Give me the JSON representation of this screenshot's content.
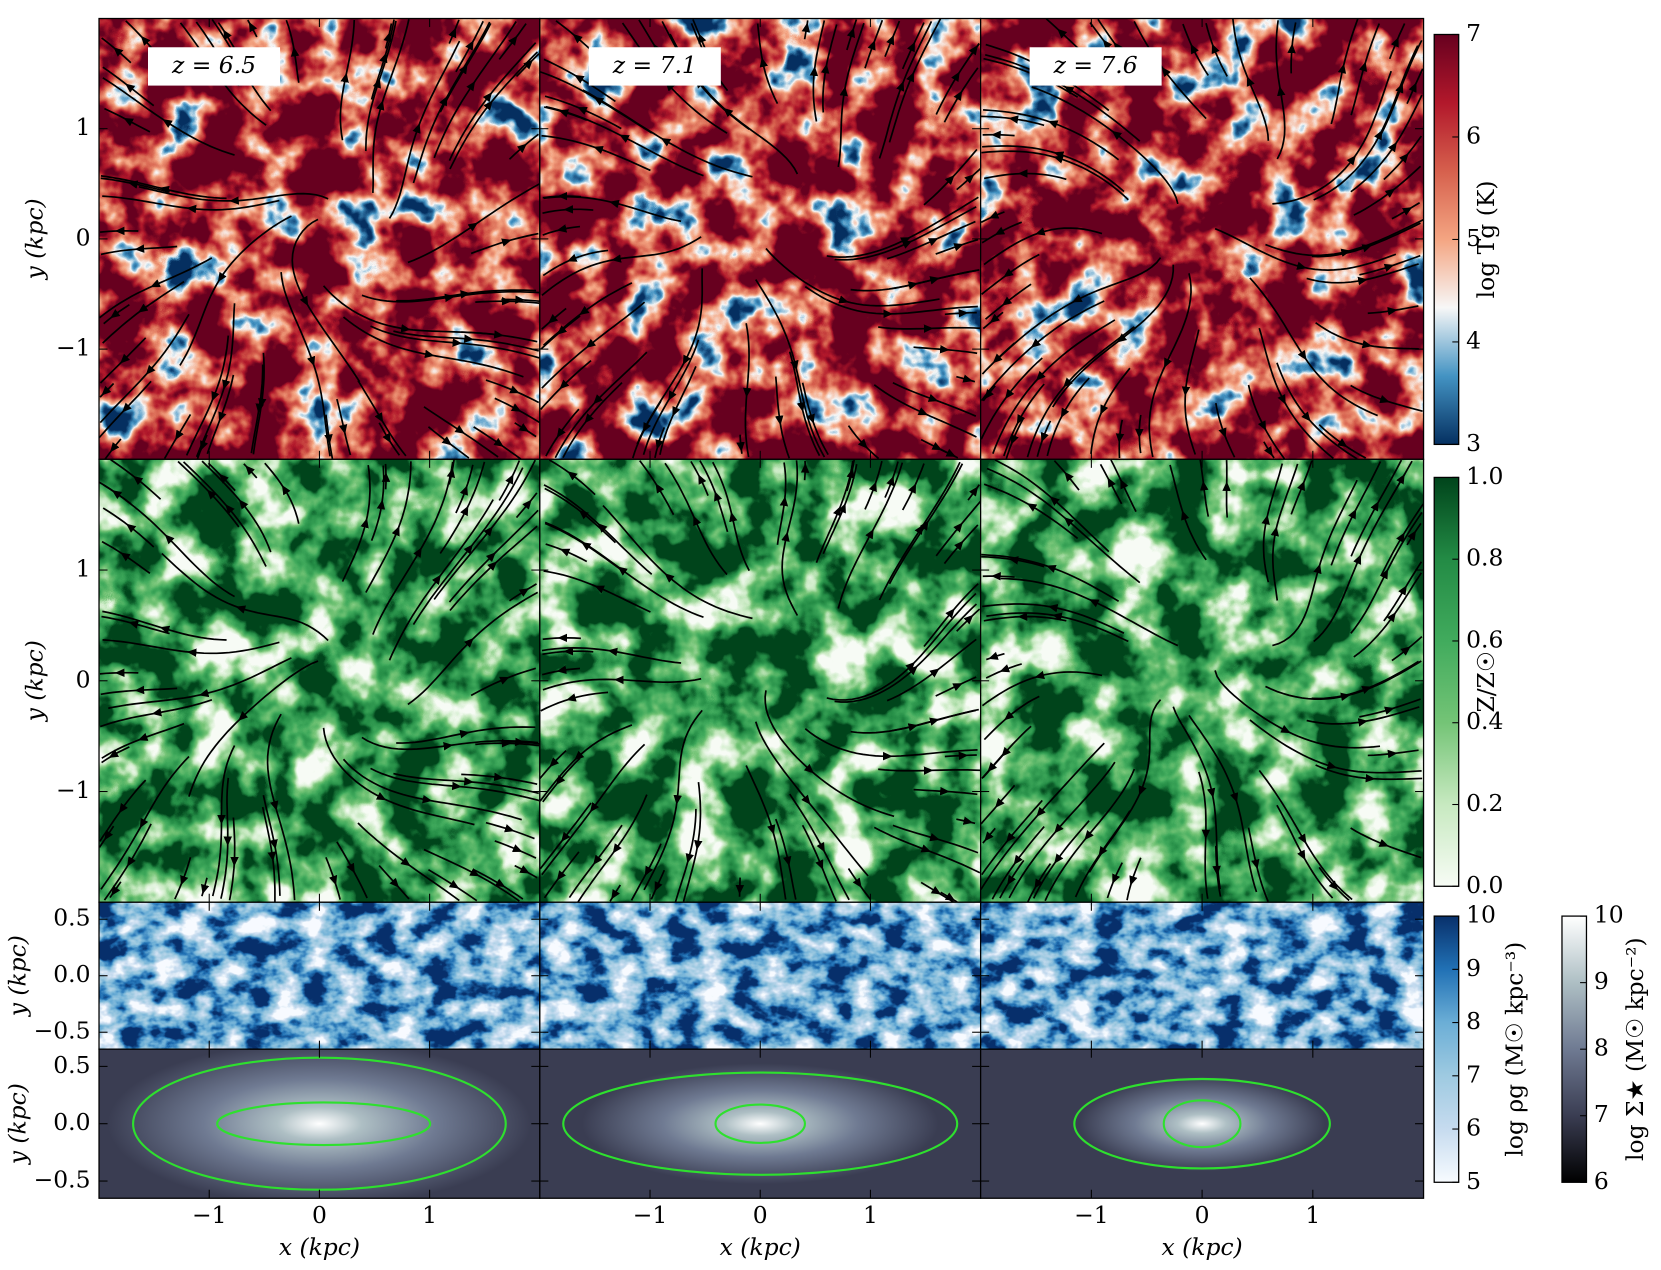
{
  "chart_data": {
    "type": "image-grid",
    "columns": [
      "z = 6.5",
      "z = 7.1",
      "z = 7.6"
    ],
    "xlabel": "x (kpc)",
    "xlim": [
      -2,
      2
    ],
    "xticks": [
      {
        "value": -1,
        "label": "−1"
      },
      0,
      1
    ],
    "rows": [
      {
        "ylabel": "y (kpc)",
        "ylim": [
          -2,
          2
        ],
        "yticks": [
          {
            "value": -1,
            "label": "−1"
          },
          0,
          1
        ]
      },
      {
        "ylabel": "y (kpc)",
        "ylim": [
          -2,
          2
        ],
        "yticks": [
          {
            "value": -1,
            "label": "−1"
          },
          0,
          1
        ]
      },
      {
        "ylabel": "y (kpc)",
        "ylim": [
          -0.65,
          0.65
        ],
        "yticks": [
          {
            "value": -0.5,
            "label": "−0.5"
          },
          {
            "value": 0,
            "label": "0.0"
          },
          0.5
        ]
      },
      {
        "ylabel": "y (kpc)",
        "ylim": [
          -0.65,
          0.65
        ],
        "yticks": [
          {
            "value": -0.5,
            "label": "−0.5"
          },
          {
            "value": 0,
            "label": "0.0"
          },
          0.5
        ]
      }
    ],
    "colorbars": [
      {
        "label": "log Tg (K)",
        "lim": [
          3,
          7
        ],
        "ticks": [
          3,
          4,
          5,
          6,
          7
        ],
        "colormap": [
          "#053061",
          "#4393c3",
          "#f7f7f7",
          "#f4a582",
          "#d6604d",
          "#b2182b",
          "#67001f"
        ]
      },
      {
        "label": "Z/Z☉",
        "lim": [
          0,
          1
        ],
        "ticks": [
          {
            "value": 0,
            "label": "0.0"
          },
          0.2,
          0.4,
          0.6,
          0.8,
          {
            "value": 1,
            "label": "1.0"
          }
        ],
        "colormap": [
          "#f7fcf5",
          "#c7e9c0",
          "#74c476",
          "#41ab5d",
          "#238b45",
          "#00441b"
        ]
      },
      {
        "label": "log ρg (M☉ kpc⁻³)",
        "lim": [
          5,
          10
        ],
        "ticks": [
          5,
          6,
          7,
          8,
          9,
          10
        ],
        "colormap": [
          "#f7fbff",
          "#c6dbef",
          "#9ecae1",
          "#6baed6",
          "#2171b5",
          "#08306b"
        ]
      },
      {
        "label": "log Σ★ (M☉ kpc⁻²)",
        "lim": [
          6,
          10
        ],
        "ticks": [
          6,
          7,
          8,
          9,
          10
        ],
        "colormap": [
          "#000000",
          "#3a3d52",
          "#6f7a92",
          "#aebfc4",
          "#ffffff"
        ]
      }
    ]
  }
}
